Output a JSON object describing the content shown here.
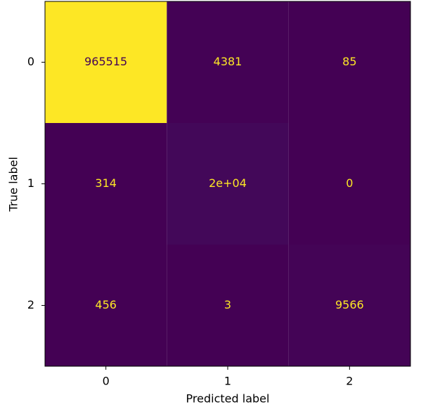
{
  "chart_data": {
    "type": "heatmap",
    "x_label": "Predicted label",
    "y_label": "True label",
    "x_categories": [
      "0",
      "1",
      "2"
    ],
    "y_categories": [
      "0",
      "1",
      "2"
    ],
    "values": [
      [
        965515,
        4381,
        85
      ],
      [
        314,
        20000,
        0
      ],
      [
        456,
        3,
        9566
      ]
    ],
    "value_labels": [
      [
        "965515",
        "4381",
        "85"
      ],
      [
        "314",
        "2e+04",
        "0"
      ],
      [
        "456",
        "3",
        "9566"
      ]
    ],
    "colormap": "viridis"
  }
}
